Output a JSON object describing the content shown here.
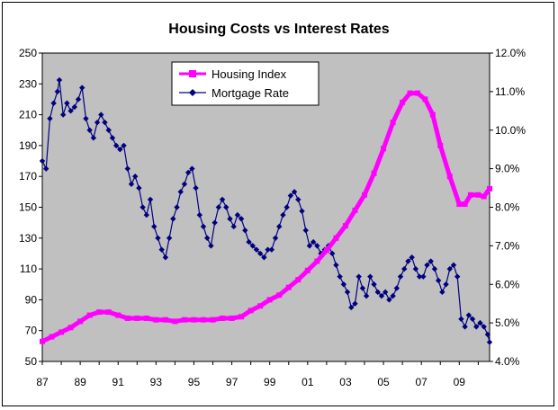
{
  "colors": {
    "plot_background": "#c0c0c0",
    "housing": "#ff00ff",
    "mortgage": "#000080",
    "axis": "#000000"
  },
  "chart_data": {
    "type": "line",
    "title": "Housing Costs vs Interest Rates",
    "xlabel": "",
    "ylabel": "",
    "x_ticks": [
      "87",
      "89",
      "91",
      "93",
      "95",
      "97",
      "99",
      "01",
      "03",
      "05",
      "07",
      "09"
    ],
    "xlim": [
      1987,
      2010.6
    ],
    "y_left": {
      "lim": [
        50,
        250
      ],
      "ticks": [
        50,
        70,
        90,
        110,
        130,
        150,
        170,
        190,
        210,
        230,
        250
      ]
    },
    "y_right": {
      "lim": [
        4.0,
        12.0
      ],
      "ticks": [
        "4.0%",
        "5.0%",
        "6.0%",
        "7.0%",
        "8.0%",
        "9.0%",
        "10.0%",
        "11.0%",
        "12.0%"
      ]
    },
    "grid": false,
    "legend": {
      "placement": "top-center",
      "entries": [
        "Housing Index",
        "Mortgage Rate"
      ]
    },
    "series": [
      {
        "name": "Housing Index",
        "axis": "left",
        "marker": "square",
        "points": [
          [
            1987.0,
            63
          ],
          [
            1987.5,
            66
          ],
          [
            1988.0,
            69
          ],
          [
            1988.5,
            72
          ],
          [
            1989.0,
            76
          ],
          [
            1989.5,
            80
          ],
          [
            1990.0,
            82
          ],
          [
            1990.5,
            82
          ],
          [
            1991.0,
            80
          ],
          [
            1991.5,
            78
          ],
          [
            1992.0,
            78
          ],
          [
            1992.5,
            78
          ],
          [
            1993.0,
            77
          ],
          [
            1993.5,
            77
          ],
          [
            1994.0,
            76
          ],
          [
            1994.5,
            77
          ],
          [
            1995.0,
            77
          ],
          [
            1995.5,
            77
          ],
          [
            1996.0,
            77
          ],
          [
            1996.5,
            78
          ],
          [
            1997.0,
            78
          ],
          [
            1997.5,
            79
          ],
          [
            1998.0,
            83
          ],
          [
            1998.5,
            86
          ],
          [
            1999.0,
            90
          ],
          [
            1999.5,
            93
          ],
          [
            2000.0,
            98
          ],
          [
            2000.5,
            103
          ],
          [
            2001.0,
            109
          ],
          [
            2001.5,
            115
          ],
          [
            2002.0,
            122
          ],
          [
            2002.5,
            130
          ],
          [
            2003.0,
            138
          ],
          [
            2003.5,
            148
          ],
          [
            2004.0,
            158
          ],
          [
            2004.5,
            172
          ],
          [
            2005.0,
            188
          ],
          [
            2005.5,
            205
          ],
          [
            2006.0,
            218
          ],
          [
            2006.4,
            224
          ],
          [
            2006.8,
            224
          ],
          [
            2007.2,
            220
          ],
          [
            2007.6,
            210
          ],
          [
            2008.0,
            190
          ],
          [
            2008.5,
            170
          ],
          [
            2009.0,
            152
          ],
          [
            2009.3,
            152
          ],
          [
            2009.6,
            158
          ],
          [
            2010.0,
            158
          ],
          [
            2010.3,
            157
          ],
          [
            2010.6,
            162
          ]
        ]
      },
      {
        "name": "Mortgage Rate",
        "axis": "right",
        "marker": "diamond",
        "points": [
          [
            1987.0,
            9.2
          ],
          [
            1987.2,
            9.0
          ],
          [
            1987.4,
            10.3
          ],
          [
            1987.6,
            10.7
          ],
          [
            1987.8,
            11.0
          ],
          [
            1987.9,
            11.3
          ],
          [
            1988.1,
            10.4
          ],
          [
            1988.3,
            10.7
          ],
          [
            1988.5,
            10.5
          ],
          [
            1988.7,
            10.6
          ],
          [
            1988.9,
            10.8
          ],
          [
            1989.1,
            11.1
          ],
          [
            1989.3,
            10.3
          ],
          [
            1989.5,
            10.0
          ],
          [
            1989.7,
            9.8
          ],
          [
            1989.9,
            10.2
          ],
          [
            1990.1,
            10.4
          ],
          [
            1990.3,
            10.2
          ],
          [
            1990.5,
            10.0
          ],
          [
            1990.7,
            9.8
          ],
          [
            1990.9,
            9.6
          ],
          [
            1991.1,
            9.5
          ],
          [
            1991.3,
            9.6
          ],
          [
            1991.5,
            9.0
          ],
          [
            1991.7,
            8.6
          ],
          [
            1991.9,
            8.8
          ],
          [
            1992.1,
            8.5
          ],
          [
            1992.3,
            8.0
          ],
          [
            1992.5,
            7.8
          ],
          [
            1992.7,
            8.2
          ],
          [
            1992.9,
            7.5
          ],
          [
            1993.1,
            7.2
          ],
          [
            1993.3,
            6.9
          ],
          [
            1993.5,
            6.7
          ],
          [
            1993.7,
            7.2
          ],
          [
            1993.9,
            7.7
          ],
          [
            1994.1,
            8.0
          ],
          [
            1994.3,
            8.4
          ],
          [
            1994.5,
            8.6
          ],
          [
            1994.7,
            8.9
          ],
          [
            1994.9,
            9.0
          ],
          [
            1995.1,
            8.5
          ],
          [
            1995.3,
            7.8
          ],
          [
            1995.5,
            7.5
          ],
          [
            1995.7,
            7.2
          ],
          [
            1995.9,
            7.0
          ],
          [
            1996.1,
            7.6
          ],
          [
            1996.3,
            8.0
          ],
          [
            1996.5,
            8.2
          ],
          [
            1996.7,
            8.0
          ],
          [
            1996.9,
            7.7
          ],
          [
            1997.1,
            7.5
          ],
          [
            1997.3,
            7.8
          ],
          [
            1997.5,
            7.7
          ],
          [
            1997.7,
            7.4
          ],
          [
            1997.9,
            7.1
          ],
          [
            1998.1,
            7.0
          ],
          [
            1998.3,
            6.9
          ],
          [
            1998.5,
            6.8
          ],
          [
            1998.7,
            6.7
          ],
          [
            1998.9,
            6.9
          ],
          [
            1999.1,
            6.9
          ],
          [
            1999.3,
            7.2
          ],
          [
            1999.5,
            7.5
          ],
          [
            1999.7,
            7.8
          ],
          [
            1999.9,
            8.0
          ],
          [
            2000.1,
            8.3
          ],
          [
            2000.3,
            8.4
          ],
          [
            2000.5,
            8.2
          ],
          [
            2000.7,
            7.9
          ],
          [
            2000.9,
            7.4
          ],
          [
            2001.1,
            7.0
          ],
          [
            2001.3,
            7.1
          ],
          [
            2001.5,
            7.0
          ],
          [
            2001.7,
            6.8
          ],
          [
            2001.9,
            6.9
          ],
          [
            2002.1,
            7.0
          ],
          [
            2002.3,
            6.8
          ],
          [
            2002.5,
            6.5
          ],
          [
            2002.7,
            6.2
          ],
          [
            2002.9,
            6.0
          ],
          [
            2003.1,
            5.8
          ],
          [
            2003.3,
            5.4
          ],
          [
            2003.5,
            5.5
          ],
          [
            2003.7,
            6.2
          ],
          [
            2003.9,
            5.9
          ],
          [
            2004.1,
            5.7
          ],
          [
            2004.3,
            6.2
          ],
          [
            2004.5,
            6.0
          ],
          [
            2004.7,
            5.8
          ],
          [
            2004.9,
            5.7
          ],
          [
            2005.1,
            5.8
          ],
          [
            2005.3,
            5.6
          ],
          [
            2005.5,
            5.7
          ],
          [
            2005.7,
            5.9
          ],
          [
            2005.9,
            6.2
          ],
          [
            2006.1,
            6.4
          ],
          [
            2006.3,
            6.6
          ],
          [
            2006.5,
            6.7
          ],
          [
            2006.7,
            6.4
          ],
          [
            2006.9,
            6.2
          ],
          [
            2007.1,
            6.2
          ],
          [
            2007.3,
            6.5
          ],
          [
            2007.5,
            6.6
          ],
          [
            2007.7,
            6.4
          ],
          [
            2007.9,
            6.1
          ],
          [
            2008.1,
            5.8
          ],
          [
            2008.3,
            6.0
          ],
          [
            2008.5,
            6.4
          ],
          [
            2008.7,
            6.5
          ],
          [
            2008.9,
            6.2
          ],
          [
            2009.1,
            5.1
          ],
          [
            2009.3,
            4.9
          ],
          [
            2009.5,
            5.2
          ],
          [
            2009.7,
            5.1
          ],
          [
            2009.9,
            4.9
          ],
          [
            2010.1,
            5.0
          ],
          [
            2010.3,
            4.9
          ],
          [
            2010.5,
            4.7
          ],
          [
            2010.6,
            4.5
          ]
        ]
      }
    ]
  }
}
